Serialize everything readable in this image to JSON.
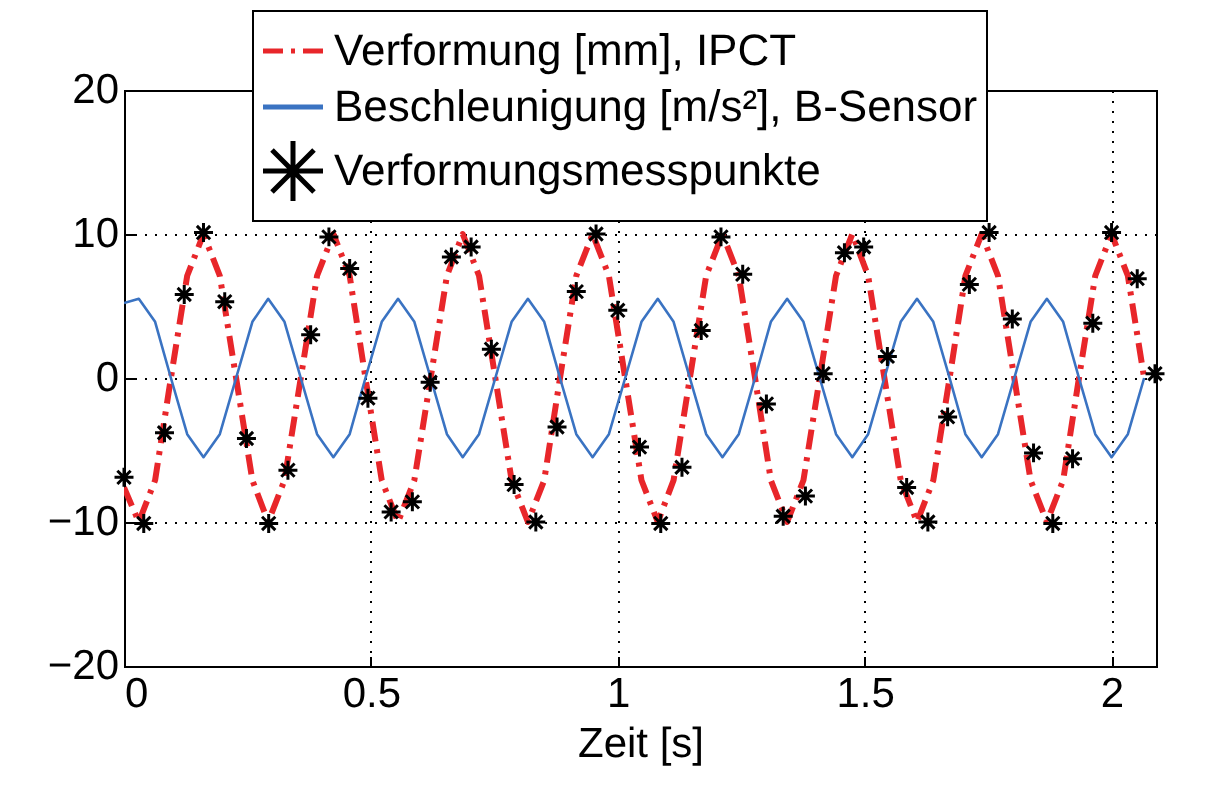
{
  "chart_data": {
    "type": "line",
    "xlabel": "Zeit [s]",
    "xlim": [
      0,
      2.09
    ],
    "ylim": [
      -20,
      20
    ],
    "xticks": [
      0,
      0.5,
      1,
      1.5,
      2
    ],
    "yticks": [
      -20,
      -10,
      0,
      10,
      20
    ],
    "grid": true,
    "legend": "top right",
    "series": [
      {
        "name": "Verformung  [mm], IPCT",
        "color": "#e8262a",
        "line_style": "dashed",
        "x": [
          0,
          0.03,
          0.063,
          0.095,
          0.128,
          0.161,
          0.194,
          0.227,
          0.26,
          0.292,
          0.325,
          0.358,
          0.391,
          0.424,
          0.457,
          0.489,
          0.522,
          0.555,
          0.588,
          0.621,
          0.654,
          0.686,
          0.719,
          0.752,
          0.785,
          0.818,
          0.851,
          0.883,
          0.916,
          0.949,
          0.982,
          1.015,
          1.048,
          1.081,
          1.113,
          1.146,
          1.179,
          1.212,
          1.245,
          1.278,
          1.31,
          1.343,
          1.376,
          1.409,
          1.442,
          1.475,
          1.507,
          1.54,
          1.573,
          1.606,
          1.639,
          1.672,
          1.704,
          1.737,
          1.77,
          1.803,
          1.836,
          1.869,
          1.902,
          1.934,
          1.967,
          2.0,
          2.033,
          2.066
        ],
        "values": [
          -7.6,
          -10,
          -7.1,
          0,
          7.1,
          10,
          7.1,
          0,
          -7.1,
          -10,
          -7.1,
          0,
          7.1,
          10,
          7.1,
          0,
          -7.1,
          -10,
          -7.1,
          0,
          7.1,
          10,
          7.1,
          0,
          -7.1,
          -10,
          -7.1,
          0,
          7.1,
          10,
          7.1,
          0,
          -7.1,
          -10,
          -7.1,
          0,
          7.1,
          10,
          7.1,
          0,
          -7.1,
          -10,
          -7.1,
          0,
          7.1,
          10,
          7.1,
          0,
          -7.1,
          -10,
          -7.1,
          0,
          7.1,
          10,
          7.1,
          0,
          -7.1,
          -10,
          -7.1,
          0,
          7.1,
          10,
          7.1,
          0
        ]
      },
      {
        "name": "Beschleunigung [m/s²], B-Sensor",
        "color": "#3a73c2",
        "line_style": "solid",
        "x": [
          0,
          0.03,
          0.063,
          0.095,
          0.128,
          0.161,
          0.194,
          0.227,
          0.26,
          0.292,
          0.325,
          0.358,
          0.391,
          0.424,
          0.457,
          0.489,
          0.522,
          0.555,
          0.588,
          0.621,
          0.654,
          0.686,
          0.719,
          0.752,
          0.785,
          0.818,
          0.851,
          0.883,
          0.916,
          0.949,
          0.982,
          1.015,
          1.048,
          1.081,
          1.113,
          1.146,
          1.179,
          1.212,
          1.245,
          1.278,
          1.31,
          1.343,
          1.376,
          1.409,
          1.442,
          1.475,
          1.507,
          1.54,
          1.573,
          1.606,
          1.639,
          1.672,
          1.704,
          1.737,
          1.77,
          1.803,
          1.836,
          1.869,
          1.902,
          1.934,
          1.967,
          2.0,
          2.033,
          2.066
        ],
        "values": [
          5.2,
          5.5,
          3.9,
          0,
          -3.9,
          -5.5,
          -3.9,
          0,
          3.9,
          5.5,
          3.9,
          0,
          -3.9,
          -5.5,
          -3.9,
          0,
          3.9,
          5.5,
          3.9,
          0,
          -3.9,
          -5.5,
          -3.9,
          0,
          3.9,
          5.5,
          3.9,
          0,
          -3.9,
          -5.5,
          -3.9,
          0,
          3.9,
          5.5,
          3.9,
          0,
          -3.9,
          -5.5,
          -3.9,
          0,
          3.9,
          5.5,
          3.9,
          0,
          -3.9,
          -5.5,
          -3.9,
          0,
          3.9,
          5.5,
          3.9,
          0,
          -3.9,
          -5.5,
          -3.9,
          0,
          3.9,
          5.5,
          3.9,
          0,
          -3.9,
          -5.5,
          -3.9,
          0
        ]
      },
      {
        "name": "Verformungsmesspunkte",
        "color": "#000000",
        "type": "scatter",
        "marker": "cross",
        "x": [
          0,
          0.04,
          0.082,
          0.122,
          0.161,
          0.204,
          0.248,
          0.293,
          0.332,
          0.378,
          0.415,
          0.457,
          0.494,
          0.541,
          0.584,
          0.62,
          0.663,
          0.703,
          0.744,
          0.79,
          0.834,
          0.877,
          0.916,
          0.956,
          1.0,
          1.044,
          1.087,
          1.13,
          1.169,
          1.209,
          1.253,
          1.301,
          1.335,
          1.38,
          1.416,
          1.459,
          1.498,
          1.546,
          1.585,
          1.628,
          1.668,
          1.712,
          1.752,
          1.799,
          1.842,
          1.881,
          1.921,
          1.962,
          2.0,
          2.052,
          2.088
        ],
        "values": [
          -6.9,
          -10.1,
          -3.8,
          5.8,
          10.1,
          5.3,
          -4.2,
          -10.1,
          -6.4,
          3.0,
          9.8,
          7.6,
          -1.4,
          -9.3,
          -8.6,
          -0.3,
          8.4,
          9.1,
          2.0,
          -7.4,
          -10.0,
          -3.4,
          6.0,
          10.0,
          4.7,
          -4.8,
          -10.1,
          -6.2,
          3.3,
          9.8,
          7.2,
          -1.8,
          -9.6,
          -8.2,
          0.3,
          8.7,
          9.1,
          1.5,
          -7.6,
          -10.0,
          -2.7,
          6.5,
          10.1,
          4.1,
          -5.2,
          -10.1,
          -5.6,
          3.8,
          10.1,
          6.9,
          0.3
        ]
      }
    ]
  }
}
